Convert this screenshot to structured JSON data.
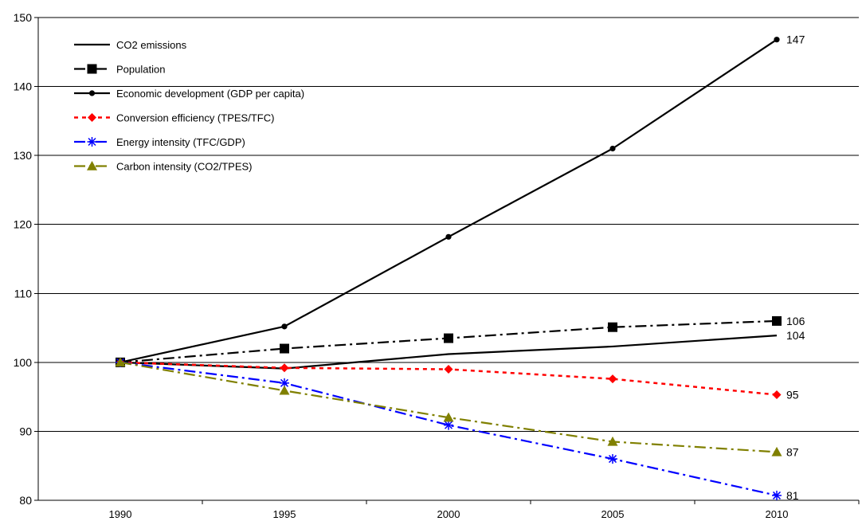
{
  "chart_data": {
    "type": "line",
    "title": "",
    "xlabel": "",
    "ylabel": "",
    "x": [
      1990,
      1995,
      2000,
      2005,
      2010
    ],
    "ylim": [
      80,
      150
    ],
    "y_ticks": [
      80,
      90,
      100,
      110,
      120,
      130,
      140,
      150
    ],
    "grid": true,
    "legend_position": "top-left",
    "series": [
      {
        "name": "CO2 emissions",
        "values": [
          100,
          99.1,
          101.2,
          102.3,
          103.9
        ],
        "end_label": "104",
        "color": "#000000",
        "line_style": "solid",
        "marker": "none"
      },
      {
        "name": "Population",
        "values": [
          100,
          102.0,
          103.5,
          105.1,
          106.0
        ],
        "end_label": "106",
        "color": "#000000",
        "line_style": "dash-dot",
        "marker": "square"
      },
      {
        "name": "Economic development (GDP per capita)",
        "values": [
          100,
          105.2,
          118.2,
          131.0,
          146.8
        ],
        "end_label": "147",
        "color": "#000000",
        "line_style": "solid",
        "marker": "circle"
      },
      {
        "name": "Conversion efficiency (TPES/TFC)",
        "values": [
          100,
          99.2,
          99.0,
          97.6,
          95.3
        ],
        "end_label": "95",
        "color": "#ff0000",
        "line_style": "dotted",
        "marker": "diamond"
      },
      {
        "name": "Energy intensity (TFC/GDP)",
        "values": [
          100,
          97.0,
          90.9,
          86.0,
          80.7
        ],
        "end_label": "81",
        "color": "#0000ff",
        "line_style": "dash-dot",
        "marker": "star"
      },
      {
        "name": "Carbon intensity (CO2/TPES)",
        "values": [
          100,
          95.9,
          92.0,
          88.5,
          87.0
        ],
        "end_label": "87",
        "color": "#808000",
        "line_style": "dash-dot",
        "marker": "triangle"
      }
    ]
  }
}
